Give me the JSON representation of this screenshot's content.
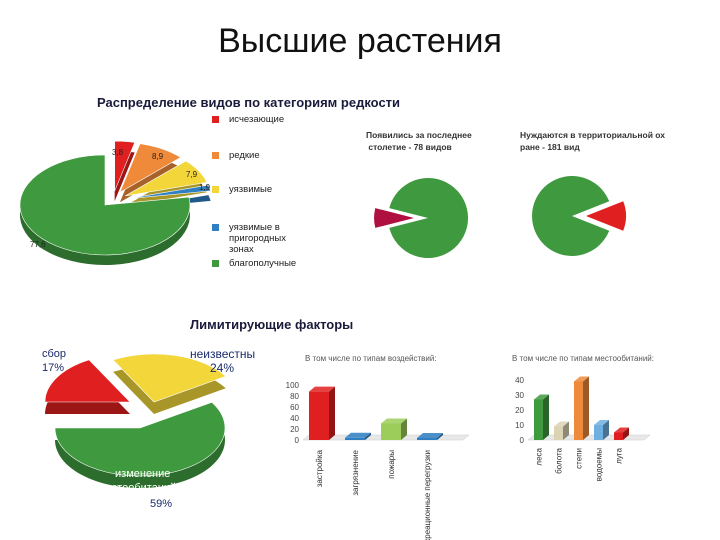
{
  "page": {
    "title": "Высшие растения"
  },
  "section1": {
    "title": "Распределение видов по категориям редкости"
  },
  "section2": {
    "title": "Лимитирующие факторы"
  },
  "colors": {
    "red": "#e02020",
    "orange": "#ee8a3a",
    "yellow": "#f2d63a",
    "blue": "#2f7fc2",
    "green": "#3f9a3f"
  },
  "chart_data": [
    {
      "type": "pie",
      "id": "rarity",
      "legend": [
        "исчезающие",
        "редкие",
        "уязвимые",
        "уязвимые в пригородных зонах",
        "благополучные"
      ],
      "slice_labels": [
        "3,8",
        "8,9",
        "7,9",
        "1,9",
        "77,6"
      ],
      "values": [
        3.8,
        8.9,
        7.9,
        1.9,
        77.6
      ]
    },
    {
      "type": "pie",
      "id": "new-century",
      "title": "Появились за последнее столетие - 78 видов",
      "values": [
        8,
        92
      ]
    },
    {
      "type": "pie",
      "id": "protection",
      "title": "Нуждаются в территориальной охране - 181 вид",
      "values": [
        12,
        88
      ]
    },
    {
      "type": "pie",
      "id": "limiting",
      "slices": [
        {
          "name": "сбор",
          "label": "17%",
          "value": 17
        },
        {
          "name": "неизвестны",
          "label": "24%",
          "value": 24
        },
        {
          "name": "изменение местообитаний",
          "label": "59%",
          "value": 59
        }
      ]
    },
    {
      "type": "bar",
      "id": "impact",
      "title": "В том числе по типам воздействий:",
      "categories": [
        "застройка",
        "загрязнение",
        "пожары",
        "рекреационные перегрузки"
      ],
      "values": [
        88,
        4,
        30,
        3
      ],
      "yticks": [
        0,
        20,
        40,
        60,
        80,
        100
      ],
      "ylim": [
        0,
        100
      ]
    },
    {
      "type": "bar",
      "id": "habitat",
      "title": "В том числе по типам местообитаний:",
      "categories": [
        "леса",
        "болота",
        "степи",
        "водоемы",
        "луга"
      ],
      "values": [
        27,
        9,
        39,
        10,
        5
      ],
      "yticks": [
        0,
        10,
        20,
        30,
        40
      ],
      "ylim": [
        0,
        40
      ]
    }
  ]
}
